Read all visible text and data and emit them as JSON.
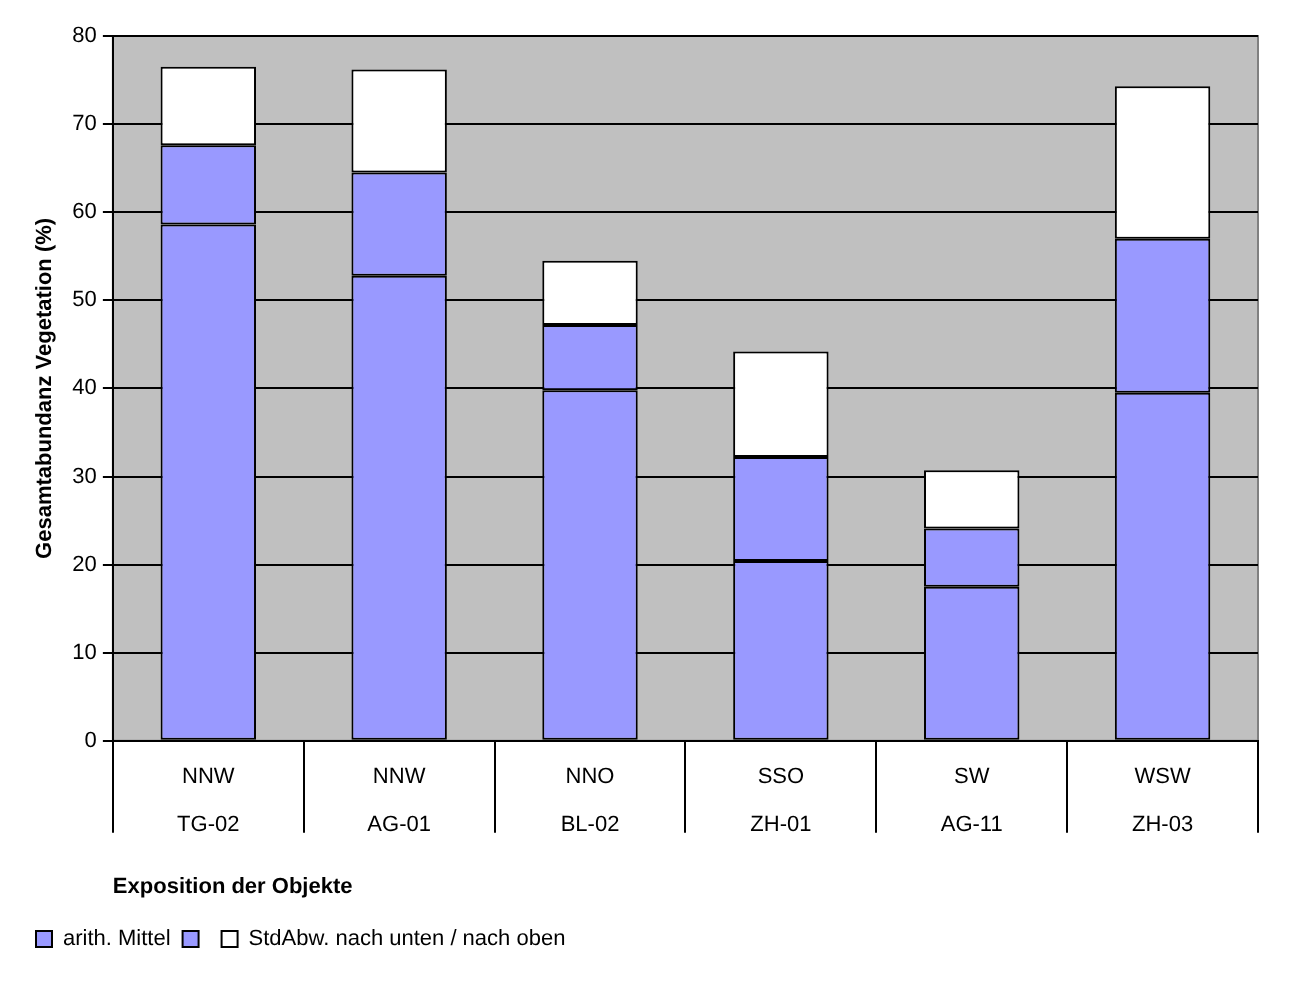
{
  "chart_data": {
    "type": "bar",
    "stacked": true,
    "xlabel": "Exposition der Objekte",
    "ylabel": "Gesamtabundanz Vegetation (%)",
    "categories": [
      "NNW\nTG-02",
      "NNW\nAG-01",
      "NNO\nBL-02",
      "SSO\nZH-01",
      "SW\nAG-11",
      "WSW\nZH-03"
    ],
    "series": [
      {
        "name": "arith. Mittel",
        "color": "#9999ff",
        "values": [
          58.6,
          52.8,
          39.8,
          20.4,
          17.5,
          39.5
        ]
      },
      {
        "color": "#9999ff",
        "values": [
          9.0,
          11.7,
          7.4,
          11.8,
          6.6,
          17.5
        ]
      },
      {
        "name": "StdAbw. nach unten / nach oben",
        "color": "#ffffff",
        "values": [
          8.9,
          11.7,
          7.3,
          12.0,
          6.6,
          17.3
        ]
      }
    ],
    "ylim": [
      0,
      80
    ],
    "yticks": [
      0,
      10,
      20,
      30,
      40,
      50,
      60,
      70,
      80
    ],
    "grid": "y",
    "legend": "bottom left"
  }
}
